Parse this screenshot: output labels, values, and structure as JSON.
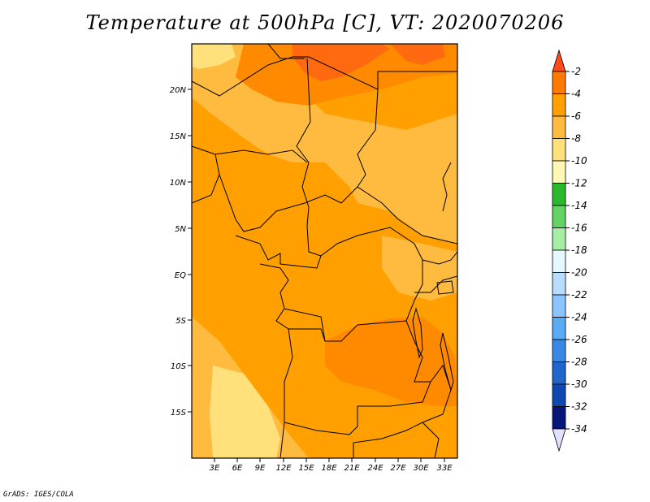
{
  "title": "Temperature at 500hPa [C], VT: 2020070206",
  "credit": "GrADS: IGES/COLA",
  "map": {
    "lat_labels": [
      "20N",
      "15N",
      "10N",
      "5N",
      "EQ",
      "5S",
      "10S",
      "15S"
    ],
    "lon_labels": [
      "3E",
      "6E",
      "9E",
      "12E",
      "15E",
      "18E",
      "21E",
      "24E",
      "27E",
      "30E",
      "33E"
    ]
  },
  "colorbar": {
    "labels": [
      "-2",
      "-4",
      "-6",
      "-8",
      "-10",
      "-12",
      "-14",
      "-16",
      "-18",
      "-20",
      "-22",
      "-24",
      "-26",
      "-28",
      "-30",
      "-32",
      "-34"
    ],
    "colors": [
      "#ff4a1c",
      "#ff7a00",
      "#ffa000",
      "#ffbb40",
      "#ffe07a",
      "#fff8b5",
      "#2bb82b",
      "#63d463",
      "#a6eda6",
      "#e5f8ff",
      "#b7dcff",
      "#8cc4ff",
      "#5aaaf5",
      "#3a88e6",
      "#2066cc",
      "#0f48b0",
      "#06157a",
      "#e0e0ff"
    ]
  },
  "field_colors": {
    "warmest": "#ff6a10",
    "warm": "#ff8a00",
    "mid": "#ffa000",
    "cool": "#ffbb40",
    "coolest": "#ffe07a"
  }
}
